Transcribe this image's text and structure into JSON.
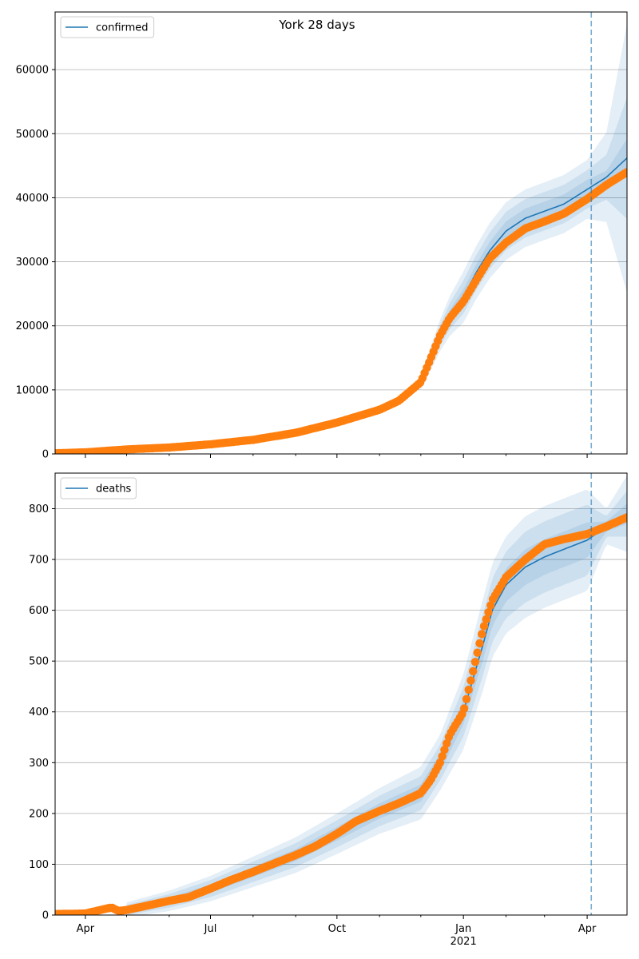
{
  "title": "York 28 days",
  "colors": {
    "model_line": "#1f77b4",
    "observed": "#ff7f0e",
    "band": "#1f77b4",
    "vline": "#1f77b4",
    "grid": "#b0b0b0"
  },
  "x_axis": {
    "start": "2020-03-10",
    "end": "2021-04-30",
    "major_ticks": [
      {
        "date": "2020-04-01",
        "label": "Apr",
        "sublabel": ""
      },
      {
        "date": "2020-07-01",
        "label": "Jul",
        "sublabel": ""
      },
      {
        "date": "2020-10-01",
        "label": "Oct",
        "sublabel": ""
      },
      {
        "date": "2021-01-01",
        "label": "Jan",
        "sublabel": "2021"
      },
      {
        "date": "2021-04-01",
        "label": "Apr",
        "sublabel": ""
      }
    ],
    "minor_ticks": [
      "2020-05-01",
      "2020-06-01",
      "2020-08-01",
      "2020-09-01",
      "2020-11-01",
      "2020-12-01",
      "2021-02-01",
      "2021-03-01",
      "2021-05-01"
    ],
    "forecast_start": "2021-04-04"
  },
  "chart_data": [
    {
      "type": "line",
      "legend": "confirmed",
      "legend_position": "top-left",
      "grid": "horizontal",
      "ylim": [
        0,
        69000
      ],
      "yticks": [
        0,
        10000,
        20000,
        30000,
        40000,
        50000,
        60000
      ],
      "observed": {
        "x": [
          "2020-03-10",
          "2020-04-01",
          "2020-05-01",
          "2020-06-01",
          "2020-07-01",
          "2020-08-01",
          "2020-09-01",
          "2020-10-01",
          "2020-11-01",
          "2020-11-15",
          "2020-12-01",
          "2020-12-08",
          "2020-12-15",
          "2020-12-22",
          "2021-01-01",
          "2021-01-10",
          "2021-01-20",
          "2021-02-01",
          "2021-02-15",
          "2021-03-01",
          "2021-03-15",
          "2021-04-01",
          "2021-04-15",
          "2021-04-30"
        ],
        "y": [
          100,
          250,
          700,
          1000,
          1500,
          2200,
          3300,
          4900,
          6900,
          8300,
          11200,
          14800,
          18500,
          21200,
          23800,
          27000,
          30500,
          33000,
          35200,
          36300,
          37500,
          39800,
          42000,
          44000
        ]
      },
      "model": {
        "x": [
          "2020-03-10",
          "2020-04-01",
          "2020-05-01",
          "2020-06-01",
          "2020-07-01",
          "2020-08-01",
          "2020-09-01",
          "2020-10-01",
          "2020-11-01",
          "2020-11-15",
          "2020-12-01",
          "2020-12-08",
          "2020-12-15",
          "2020-12-22",
          "2021-01-01",
          "2021-01-10",
          "2021-01-20",
          "2021-02-01",
          "2021-02-15",
          "2021-03-01",
          "2021-03-15",
          "2021-04-01",
          "2021-04-15",
          "2021-04-30"
        ],
        "y": [
          100,
          250,
          700,
          1000,
          1500,
          2200,
          3300,
          4900,
          6900,
          8300,
          11200,
          14800,
          18500,
          21500,
          24500,
          28200,
          31700,
          34800,
          36800,
          37900,
          39000,
          41300,
          43200,
          46200
        ]
      },
      "band_offsets": [
        {
          "x": [
            "2020-12-01",
            "2021-01-01",
            "2021-02-01",
            "2021-03-01",
            "2021-04-01",
            "2021-04-15",
            "2021-04-30"
          ],
          "y": [
            400,
            1200,
            1500,
            1500,
            1500,
            1000,
            3000
          ]
        },
        {
          "x": [
            "2020-12-01",
            "2021-01-01",
            "2021-02-01",
            "2021-03-01",
            "2021-04-01",
            "2021-04-15",
            "2021-04-30"
          ],
          "y": [
            800,
            2600,
            3000,
            3000,
            3000,
            3500,
            9500
          ]
        },
        {
          "x": [
            "2020-12-01",
            "2021-01-01",
            "2021-02-01",
            "2021-03-01",
            "2021-04-01",
            "2021-04-15",
            "2021-04-30"
          ],
          "y": [
            1200,
            4000,
            4500,
            4500,
            4600,
            7000,
            21000
          ]
        }
      ]
    },
    {
      "type": "line",
      "legend": "deaths",
      "legend_position": "top-left",
      "grid": "horizontal",
      "ylim": [
        0,
        870
      ],
      "yticks": [
        0,
        100,
        200,
        300,
        400,
        500,
        600,
        700,
        800
      ],
      "observed": {
        "x": [
          "2020-03-10",
          "2020-04-01",
          "2020-04-20",
          "2020-04-25",
          "2020-05-01",
          "2020-05-15",
          "2020-06-01",
          "2020-06-15",
          "2020-07-01",
          "2020-07-15",
          "2020-08-01",
          "2020-08-15",
          "2020-09-01",
          "2020-09-15",
          "2020-10-01",
          "2020-10-15",
          "2020-11-01",
          "2020-11-15",
          "2020-12-01",
          "2020-12-08",
          "2020-12-15",
          "2020-12-22",
          "2021-01-01",
          "2021-01-08",
          "2021-01-15",
          "2021-01-22",
          "2021-02-01",
          "2021-02-15",
          "2021-03-01",
          "2021-03-15",
          "2021-04-01",
          "2021-04-15",
          "2021-04-30"
        ],
        "y": [
          2,
          3,
          15,
          8,
          10,
          18,
          28,
          35,
          52,
          68,
          85,
          100,
          118,
          135,
          160,
          185,
          205,
          220,
          240,
          265,
          300,
          355,
          400,
          480,
          560,
          620,
          665,
          700,
          730,
          740,
          750,
          765,
          783
        ]
      },
      "model": {
        "x": [
          "2020-03-10",
          "2020-04-01",
          "2020-05-01",
          "2020-06-01",
          "2020-07-01",
          "2020-08-01",
          "2020-09-01",
          "2020-10-01",
          "2020-11-01",
          "2020-12-01",
          "2020-12-15",
          "2021-01-01",
          "2021-01-15",
          "2021-01-22",
          "2021-02-01",
          "2021-02-15",
          "2021-03-01",
          "2021-03-15",
          "2021-04-01",
          "2021-04-15",
          "2021-04-30"
        ],
        "y": [
          2,
          3,
          10,
          28,
          52,
          85,
          118,
          160,
          205,
          240,
          300,
          400,
          530,
          600,
          650,
          685,
          705,
          720,
          738,
          765,
          790
        ]
      },
      "band_offsets": [
        {
          "x": [
            "2020-05-01",
            "2020-08-01",
            "2020-11-01",
            "2020-12-15",
            "2021-01-15",
            "2021-02-15",
            "2021-04-01",
            "2021-04-15",
            "2021-04-30"
          ],
          "y": [
            5,
            10,
            15,
            18,
            30,
            35,
            35,
            10,
            20
          ]
        },
        {
          "x": [
            "2020-05-01",
            "2020-08-01",
            "2020-11-01",
            "2020-12-15",
            "2021-01-15",
            "2021-02-15",
            "2021-04-01",
            "2021-04-15",
            "2021-04-30"
          ],
          "y": [
            10,
            20,
            30,
            35,
            60,
            70,
            70,
            20,
            45
          ]
        },
        {
          "x": [
            "2020-05-01",
            "2020-08-01",
            "2020-11-01",
            "2020-12-15",
            "2021-01-15",
            "2021-02-15",
            "2021-04-01",
            "2021-04-15",
            "2021-04-30"
          ],
          "y": [
            15,
            30,
            45,
            55,
            90,
            100,
            100,
            35,
            75
          ]
        }
      ]
    }
  ]
}
